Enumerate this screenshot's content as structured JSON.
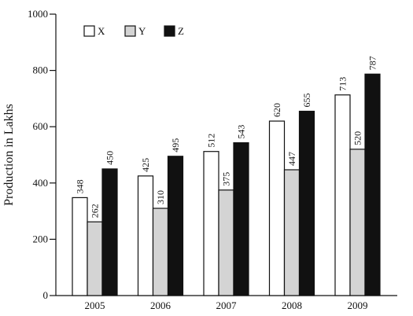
{
  "chart_data": {
    "type": "bar",
    "title": "",
    "xlabel": "",
    "ylabel": "Production in Lakhs",
    "ylim": [
      0,
      1000
    ],
    "yticks": [
      0,
      200,
      400,
      600,
      800,
      1000
    ],
    "categories": [
      "2005",
      "2006",
      "2007",
      "2008",
      "2009"
    ],
    "series": [
      {
        "name": "X",
        "values": [
          348,
          425,
          512,
          620,
          713
        ],
        "color": "#ffffff"
      },
      {
        "name": "Y",
        "values": [
          262,
          310,
          375,
          447,
          520
        ],
        "color": "#d4d4d4"
      },
      {
        "name": "Z",
        "values": [
          450,
          495,
          543,
          655,
          787
        ],
        "color": "#111111"
      }
    ],
    "legend": "top-left",
    "grid": false
  }
}
